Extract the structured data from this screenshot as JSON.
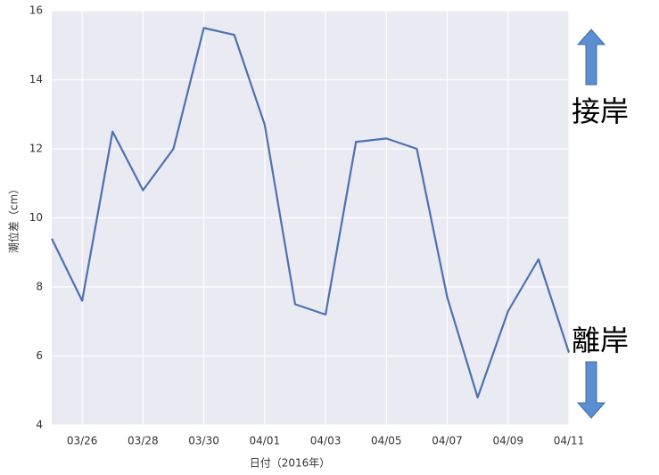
{
  "chart_data": {
    "type": "line",
    "x": [
      "03/25",
      "03/26",
      "03/27",
      "03/28",
      "03/29",
      "03/30",
      "03/31",
      "04/01",
      "04/02",
      "04/03",
      "04/04",
      "04/05",
      "04/06",
      "04/07",
      "04/08",
      "04/09",
      "04/10",
      "04/11"
    ],
    "values": [
      9.4,
      7.6,
      12.5,
      10.8,
      12.0,
      15.5,
      15.3,
      12.7,
      7.5,
      7.2,
      12.2,
      12.3,
      12.0,
      7.7,
      4.8,
      7.3,
      8.8,
      6.1
    ],
    "color": "#4c72b0",
    "xlim": [
      "03/25",
      "04/11"
    ],
    "xticks": [
      "03/26",
      "03/28",
      "03/30",
      "04/01",
      "04/03",
      "04/05",
      "04/07",
      "04/09",
      "04/11"
    ],
    "ylim": [
      4,
      16
    ],
    "yticks": [
      4,
      6,
      8,
      10,
      12,
      14,
      16
    ],
    "grid": true,
    "xlabel": "日付（2016年）",
    "ylabel": "潮位差（cm）",
    "annotations": [
      "接岸",
      "離岸"
    ]
  }
}
